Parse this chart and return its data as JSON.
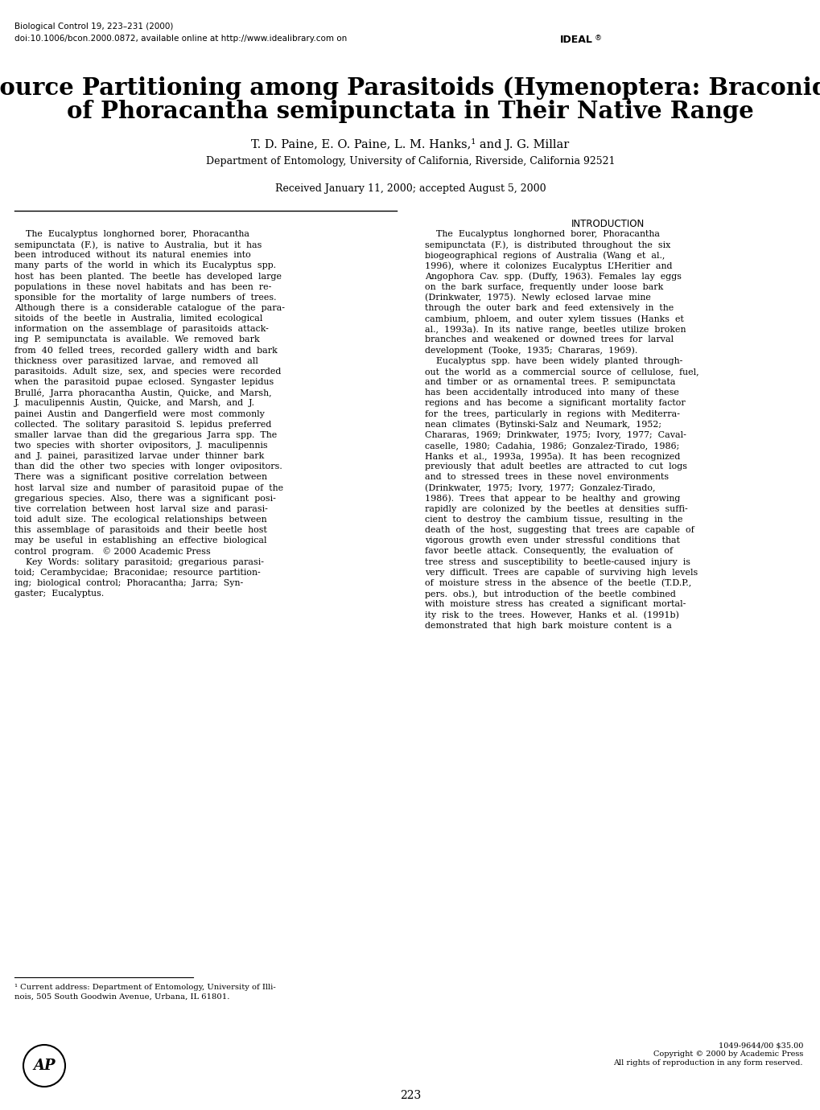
{
  "background_color": "#ffffff",
  "header_line1": "Biological Control 19, 223–231 (2000)",
  "header_line2": "doi:10.1006/bcon.2000.0872, available online at http://www.idealibrary.com on",
  "title_line1": "Resource Partitioning among Parasitoids (Hymenoptera: Braconidae)",
  "title_line2": "of Phoracantha semipunctata in Their Native Range",
  "authors": "T. D. Paine, E. O. Paine, L. M. Hanks,¹ and J. G. Millar",
  "affiliation": "Department of Entomology, University of California, Riverside, California 92521",
  "received": "Received January 11, 2000; accepted August 5, 2000",
  "section_heading": "INTRODUCTION",
  "footnote": "¹ Current address: Department of Entomology, University of Illi-\nnois, 505 South Goodwin Avenue, Urbana, IL 61801.",
  "page_number": "223",
  "copyright_text": "1049-9644/00 $35.00\nCopyright © 2000 by Academic Press\nAll rights of reproduction in any form reserved.",
  "left_col_lines": [
    "    The  Eucalyptus  longhorned  borer,  Phoracantha",
    "semipunctata  (F.),  is  native  to  Australia,  but  it  has",
    "been  introduced  without  its  natural  enemies  into",
    "many  parts  of  the  world  in  which  its  Eucalyptus  spp.",
    "host  has  been  planted.  The  beetle  has  developed  large",
    "populations  in  these  novel  habitats  and  has  been  re-",
    "sponsible  for  the  mortality  of  large  numbers  of  trees.",
    "Although  there  is  a  considerable  catalogue  of  the  para-",
    "sitoids  of  the  beetle  in  Australia,  limited  ecological",
    "information  on  the  assemblage  of  parasitoids  attack-",
    "ing  P.  semipunctata  is  available.  We  removed  bark",
    "from  40  felled  trees,  recorded  gallery  width  and  bark",
    "thickness  over  parasitized  larvae,  and  removed  all",
    "parasitoids.  Adult  size,  sex,  and  species  were  recorded",
    "when  the  parasitoid  pupae  eclosed.  Syngaster  lepidus",
    "Brullé,  Jarra  phoracantha  Austin,  Quicke,  and  Marsh,",
    "J.  maculipennis  Austin,  Quicke,  and  Marsh,  and  J.",
    "painei  Austin  and  Dangerfield  were  most  commonly",
    "collected.  The  solitary  parasitoid  S.  lepidus  preferred",
    "smaller  larvae  than  did  the  gregarious  Jarra  spp.  The",
    "two  species  with  shorter  ovipositors,  J.  maculipennis",
    "and  J.  painei,  parasitized  larvae  under  thinner  bark",
    "than  did  the  other  two  species  with  longer  ovipositors.",
    "There  was  a  significant  positive  correlation  between",
    "host  larval  size  and  number  of  parasitoid  pupae  of  the",
    "gregarious  species.  Also,  there  was  a  significant  posi-",
    "tive  correlation  between  host  larval  size  and  parasi-",
    "toid  adult  size.  The  ecological  relationships  between",
    "this  assemblage  of  parasitoids  and  their  beetle  host",
    "may  be  useful  in  establishing  an  effective  biological",
    "control  program.   © 2000 Academic Press",
    "    Key  Words:  solitary  parasitoid;  gregarious  parasi-",
    "toid;  Cerambycidae;  Braconidae;  resource  partition-",
    "ing;  biological  control;  Phoracantha;  Jarra;  Syn-",
    "gaster;  Eucalyptus."
  ],
  "right_col_lines": [
    "    The  Eucalyptus  longhorned  borer,  Phoracantha",
    "semipunctata  (F.),  is  distributed  throughout  the  six",
    "biogeographical  regions  of  Australia  (Wang  et  al.,",
    "1996),  where  it  colonizes  Eucalyptus  L’Heritier  and",
    "Angophora  Cav.  spp.  (Duffy,  1963).  Females  lay  eggs",
    "on  the  bark  surface,  frequently  under  loose  bark",
    "(Drinkwater,  1975).  Newly  eclosed  larvae  mine",
    "through  the  outer  bark  and  feed  extensively  in  the",
    "cambium,  phloem,  and  outer  xylem  tissues  (Hanks  et",
    "al.,  1993a).  In  its  native  range,  beetles  utilize  broken",
    "branches  and  weakened  or  downed  trees  for  larval",
    "development  (Tooke,  1935;  Chararas,  1969).",
    "    Eucalyptus  spp.  have  been  widely  planted  through-",
    "out  the  world  as  a  commercial  source  of  cellulose,  fuel,",
    "and  timber  or  as  ornamental  trees.  P.  semipunctata",
    "has  been  accidentally  introduced  into  many  of  these",
    "regions  and  has  become  a  significant  mortality  factor",
    "for  the  trees,  particularly  in  regions  with  Mediterra-",
    "nean  climates  (Bytinski-Salz  and  Neumark,  1952;",
    "Chararas,  1969;  Drinkwater,  1975;  Ivory,  1977;  Caval-",
    "caselle,  1980;  Cadahia,  1986;  Gonzalez-Tirado,  1986;",
    "Hanks  et  al.,  1993a,  1995a).  It  has  been  recognized",
    "previously  that  adult  beetles  are  attracted  to  cut  logs",
    "and  to  stressed  trees  in  these  novel  environments",
    "(Drinkwater,  1975;  Ivory,  1977;  Gonzalez-Tirado,",
    "1986).  Trees  that  appear  to  be  healthy  and  growing",
    "rapidly  are  colonized  by  the  beetles  at  densities  suffi-",
    "cient  to  destroy  the  cambium  tissue,  resulting  in  the",
    "death  of  the  host,  suggesting  that  trees  are  capable  of",
    "vigorous  growth  even  under  stressful  conditions  that",
    "favor  beetle  attack.  Consequently,  the  evaluation  of",
    "tree  stress  and  susceptibility  to  beetle-caused  injury  is",
    "very  difficult.  Trees  are  capable  of  surviving  high  levels",
    "of  moisture  stress  in  the  absence  of  the  beetle  (T.D.P.,",
    "pers.  obs.),  but  introduction  of  the  beetle  combined",
    "with  moisture  stress  has  created  a  significant  mortal-",
    "ity  risk  to  the  trees.  However,  Hanks  et  al.  (1991b)",
    "demonstrated  that  high  bark  moisture  content  is  a"
  ]
}
